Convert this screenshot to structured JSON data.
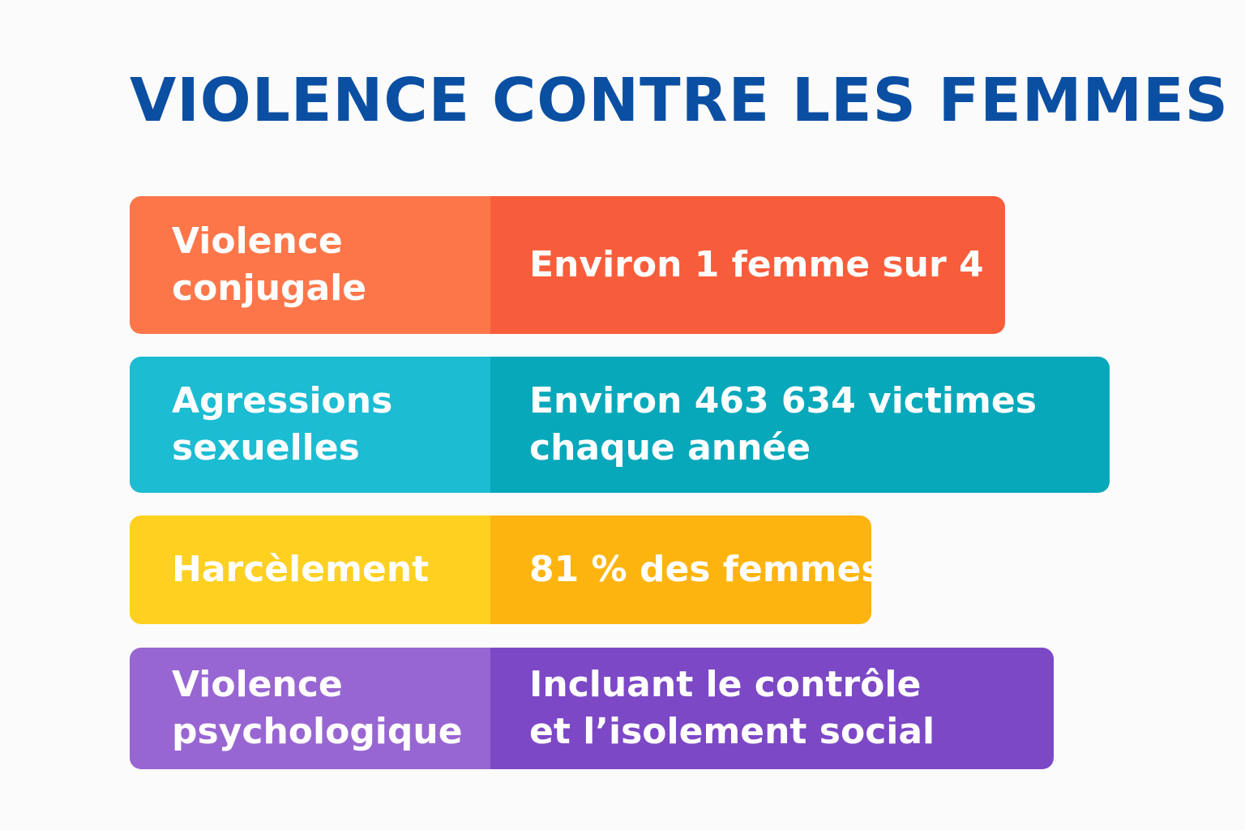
{
  "title": "VIOLENCE CONTRE LES FEMMES",
  "rows": [
    {
      "label_lines": [
        "Violence",
        "conjugale"
      ],
      "value_lines": [
        "Environ 1 femme sur 4"
      ],
      "colors": {
        "label_bg": "#fd764a",
        "value_bg": "#f85d3b"
      }
    },
    {
      "label_lines": [
        "Agressions",
        "sexuelles"
      ],
      "value_lines": [
        "Environ 463 634 victimes",
        "chaque année"
      ],
      "colors": {
        "label_bg": "#1cbcd3",
        "value_bg": "#08a8bb"
      }
    },
    {
      "label_lines": [
        "Harcèlement"
      ],
      "value_lines": [
        "81 % des femmes"
      ],
      "colors": {
        "label_bg": "#fed01f",
        "value_bg": "#feb40f"
      }
    },
    {
      "label_lines": [
        "Violence",
        "psychologique"
      ],
      "value_lines": [
        "Incluant le contrôle",
        "et l’isolement social"
      ],
      "colors": {
        "label_bg": "#9866d2",
        "value_bg": "#7c48c6"
      }
    }
  ],
  "colors": {
    "title": "#0b4fa3",
    "background": "#fbfbfb",
    "text": "#ffffff"
  }
}
